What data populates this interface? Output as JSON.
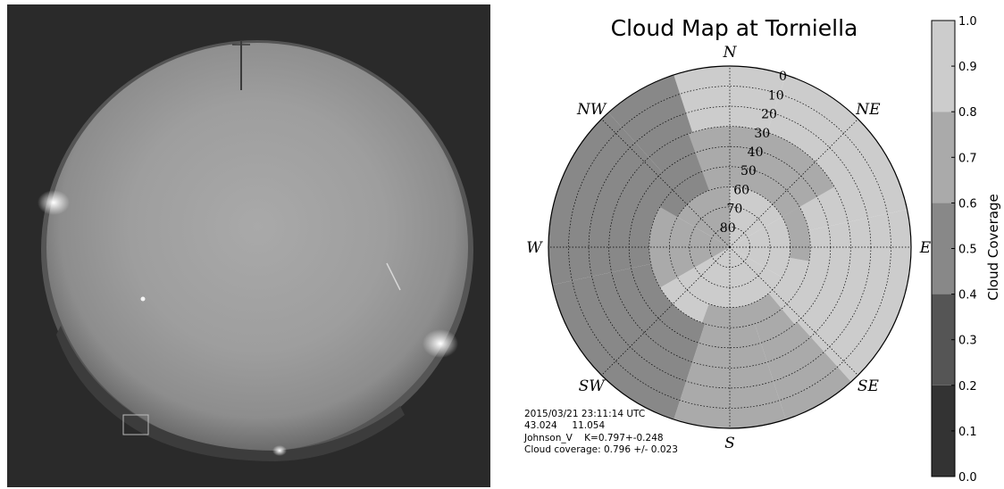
{
  "chart_data": [
    {
      "type": "image",
      "subject": "fisheye all-sky camera photo of the night sky",
      "description": "grayscale circular all-sky image with bright horizon lights"
    },
    {
      "type": "polar-heatmap",
      "title": "Cloud Map at Torniella",
      "directions": [
        {
          "label": "N",
          "azimuth": 0
        },
        {
          "label": "NE",
          "azimuth": 45
        },
        {
          "label": "E",
          "azimuth": 90
        },
        {
          "label": "SE",
          "azimuth": 135
        },
        {
          "label": "S",
          "azimuth": 180
        },
        {
          "label": "SW",
          "azimuth": 225
        },
        {
          "label": "W",
          "azimuth": 270
        },
        {
          "label": "NW",
          "azimuth": 315
        }
      ],
      "altitude_rings": [
        "0",
        "10",
        "20",
        "30",
        "40",
        "50",
        "60",
        "70",
        "80"
      ],
      "altitude_bands": [
        {
          "from": 0,
          "to": 60
        },
        {
          "from": 60,
          "to": 90
        }
      ],
      "cells": [
        {
          "az_from": 0,
          "az_to": 60,
          "band": 0,
          "value": 0.85
        },
        {
          "az_from": 60,
          "az_to": 120,
          "band": 0,
          "value": 0.85
        },
        {
          "az_from": 120,
          "az_to": 150,
          "band": 0,
          "value": 0.85
        },
        {
          "az_from": 150,
          "az_to": 210,
          "band": 0,
          "value": 0.7
        },
        {
          "az_from": 210,
          "az_to": 270,
          "band": 0,
          "value": 0.55
        },
        {
          "az_from": 270,
          "az_to": 330,
          "band": 0,
          "value": 0.55
        },
        {
          "az_from": 330,
          "az_to": 360,
          "band": 0,
          "value": 0.7
        },
        {
          "az_from": 0,
          "az_to": 60,
          "band": 1,
          "value": 0.85
        },
        {
          "az_from": 60,
          "az_to": 120,
          "band": 1,
          "value": 0.85
        },
        {
          "az_from": 120,
          "az_to": 180,
          "band": 1,
          "value": 0.85
        },
        {
          "az_from": 180,
          "az_to": 240,
          "band": 1,
          "value": 0.85
        },
        {
          "az_from": 240,
          "az_to": 300,
          "band": 1,
          "value": 0.7
        },
        {
          "az_from": 300,
          "az_to": 360,
          "band": 1,
          "value": 0.7
        }
      ],
      "outer_cells": [
        {
          "az_from": 342,
          "az_to": 18,
          "value": 0.85
        },
        {
          "az_from": 18,
          "az_to": 78,
          "value": 0.85
        },
        {
          "az_from": 78,
          "az_to": 138,
          "value": 0.85
        },
        {
          "az_from": 138,
          "az_to": 162,
          "value": 0.7
        },
        {
          "az_from": 162,
          "az_to": 198,
          "value": 0.7
        },
        {
          "az_from": 198,
          "az_to": 258,
          "value": 0.55
        },
        {
          "az_from": 258,
          "az_to": 318,
          "value": 0.55
        },
        {
          "az_from": 318,
          "az_to": 342,
          "value": 0.55
        }
      ],
      "colorbar": {
        "label": "Cloud Coverage",
        "ticks": [
          "0.0",
          "0.1",
          "0.2",
          "0.3",
          "0.4",
          "0.5",
          "0.6",
          "0.7",
          "0.8",
          "0.9",
          "1.0"
        ],
        "range": [
          0.0,
          1.0
        ],
        "bands": [
          {
            "from": 0.0,
            "to": 0.2,
            "color": "#333333"
          },
          {
            "from": 0.2,
            "to": 0.4,
            "color": "#555555"
          },
          {
            "from": 0.4,
            "to": 0.6,
            "color": "#888888"
          },
          {
            "from": 0.6,
            "to": 0.8,
            "color": "#aaaaaa"
          },
          {
            "from": 0.8,
            "to": 1.0,
            "color": "#cccccc"
          }
        ]
      },
      "info_lines": [
        "2015/03/21 23:11:14 UTC",
        "43.024     11.054",
        "Johnson_V    K=0.797+-0.248",
        "Cloud coverage: 0.796 +/- 0.023"
      ]
    }
  ]
}
